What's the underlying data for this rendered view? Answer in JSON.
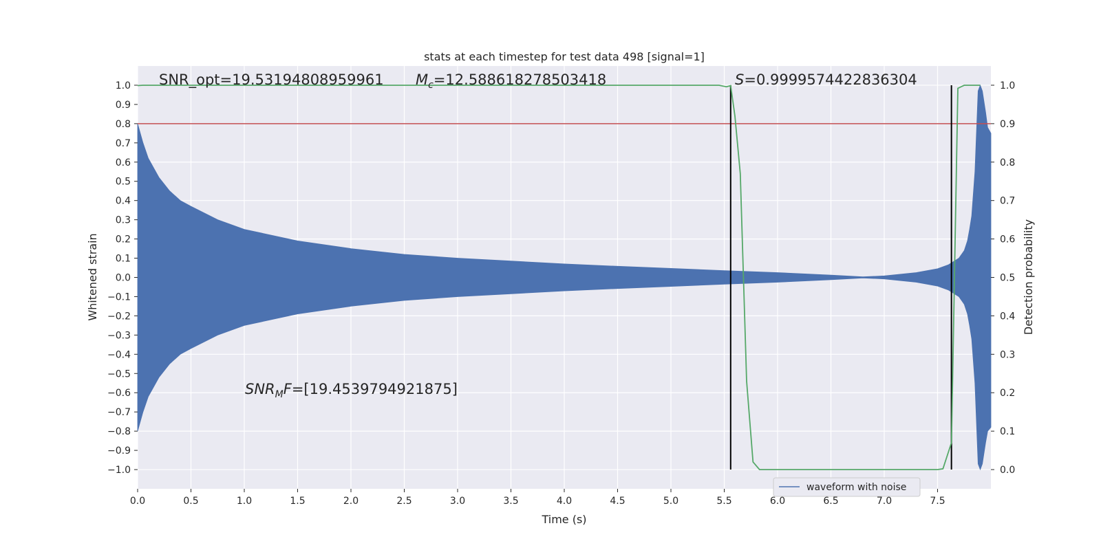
{
  "chart_data": {
    "type": "line",
    "title": "stats at each timestep for test data 498 [signal=1]",
    "xlabel": "Time (s)",
    "ylabel_left": "Whitened strain",
    "ylabel_right": "Detection probability",
    "xlim": [
      0.0,
      8.0
    ],
    "ylim_left": [
      -1.1,
      1.1
    ],
    "ylim_right": [
      -0.05,
      1.05
    ],
    "x_ticks": [
      "0.0",
      "0.5",
      "1.0",
      "1.5",
      "2.0",
      "2.5",
      "3.0",
      "3.5",
      "4.0",
      "4.5",
      "5.0",
      "5.5",
      "6.0",
      "6.5",
      "7.0",
      "7.5"
    ],
    "y_ticks_left": [
      "−1.0",
      "−0.9",
      "−0.8",
      "−0.7",
      "−0.6",
      "−0.5",
      "−0.4",
      "−0.3",
      "−0.2",
      "−0.1",
      "0.0",
      "0.1",
      "0.2",
      "0.3",
      "0.4",
      "0.5",
      "0.6",
      "0.7",
      "0.8",
      "0.9",
      "1.0"
    ],
    "y_ticks_right": [
      "0.0",
      "0.1",
      "0.2",
      "0.3",
      "0.4",
      "0.5",
      "0.6",
      "0.7",
      "0.8",
      "0.9",
      "1.0"
    ],
    "grid": true,
    "legend_location": "bottom-right",
    "annotations": {
      "snr_opt": "SNR_opt=19.53194808959961",
      "mc_symbol": "M",
      "mc_sub": "c",
      "mc_value": "=12.588618278503418",
      "s_symbol": "S",
      "s_value": "=0.9999574422836304",
      "snrmf_symbol": "SNR",
      "snrmf_sub": "M",
      "snrmf_f": "F",
      "snrmf_value": "=[19.4539794921875]"
    },
    "series": [
      {
        "name": "waveform with noise",
        "color": "#4c72b0",
        "axis": "left",
        "envelope": {
          "t": [
            0.0,
            0.05,
            0.1,
            0.2,
            0.3,
            0.4,
            0.5,
            0.75,
            1.0,
            1.5,
            2.0,
            2.5,
            3.0,
            3.5,
            4.0,
            4.5,
            5.0,
            5.5,
            6.0,
            6.5,
            6.8,
            7.0,
            7.3,
            7.5,
            7.6,
            7.7,
            7.75,
            7.78,
            7.8,
            7.82,
            7.85,
            7.88,
            7.9,
            7.92,
            7.95,
            7.97,
            8.0
          ],
          "upper": [
            0.8,
            0.7,
            0.62,
            0.52,
            0.45,
            0.4,
            0.37,
            0.3,
            0.25,
            0.19,
            0.15,
            0.12,
            0.1,
            0.085,
            0.07,
            0.058,
            0.047,
            0.035,
            0.025,
            0.012,
            0.003,
            0.008,
            0.025,
            0.045,
            0.065,
            0.1,
            0.14,
            0.19,
            0.25,
            0.32,
            0.55,
            0.97,
            1.0,
            0.97,
            0.86,
            0.78,
            0.75
          ],
          "lower": [
            -0.8,
            -0.7,
            -0.62,
            -0.52,
            -0.45,
            -0.4,
            -0.37,
            -0.3,
            -0.25,
            -0.19,
            -0.15,
            -0.12,
            -0.1,
            -0.085,
            -0.07,
            -0.058,
            -0.047,
            -0.035,
            -0.025,
            -0.012,
            -0.003,
            -0.008,
            -0.025,
            -0.045,
            -0.065,
            -0.1,
            -0.14,
            -0.19,
            -0.25,
            -0.32,
            -0.55,
            -0.97,
            -1.0,
            -0.97,
            -0.86,
            -0.8,
            -0.78
          ]
        }
      },
      {
        "name": "",
        "color": "#55a868",
        "axis": "right",
        "x": [
          0.0,
          0.05,
          0.5,
          1.0,
          2.0,
          3.0,
          4.0,
          5.0,
          5.45,
          5.52,
          5.56,
          5.6,
          5.65,
          5.71,
          5.77,
          5.83,
          6.0,
          6.5,
          7.0,
          7.5,
          7.55,
          7.63,
          7.69,
          7.75,
          7.8,
          7.9
        ],
        "y": [
          0.999,
          1.0,
          1.0,
          1.0,
          1.0,
          1.0,
          1.0,
          1.0,
          1.0,
          0.996,
          0.999,
          0.92,
          0.77,
          0.23,
          0.02,
          0.0,
          0.0,
          0.0,
          0.0,
          0.0,
          0.002,
          0.07,
          0.992,
          1.0,
          1.0,
          1.0
        ]
      }
    ],
    "hlines": [
      {
        "y": 0.8,
        "axis": "left",
        "color": "#c44e52"
      }
    ],
    "vlines": [
      {
        "x": 5.56,
        "y_range": [
          -1.0,
          1.0
        ],
        "color": "#000000"
      },
      {
        "x": 7.63,
        "y_range": [
          -1.0,
          1.0
        ],
        "color": "#000000"
      }
    ]
  }
}
